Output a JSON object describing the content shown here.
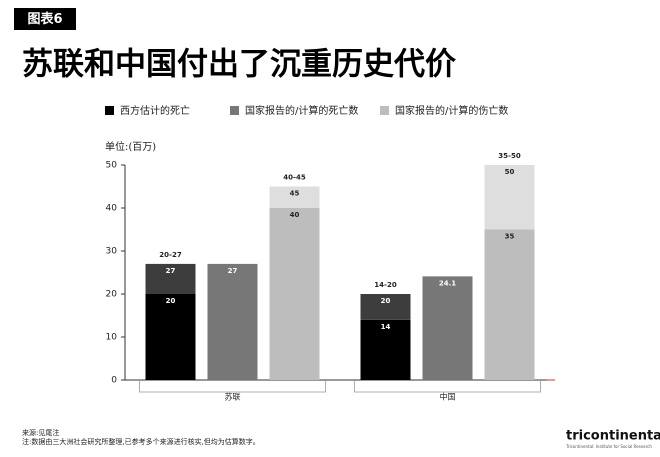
{
  "header": {
    "tag": "图表6"
  },
  "chart_data": {
    "type": "bar",
    "title": "苏联和中国付出了沉重历史代价",
    "ylabel": "单位:(百万)",
    "categories": [
      "苏联",
      "中国"
    ],
    "series": [
      {
        "name": "西方估计的死亡",
        "color": "#000000",
        "high_color": "#3d3d3d",
        "values": [
          20,
          14
        ],
        "values_high": [
          27,
          20
        ],
        "range_labels": [
          "20-27",
          "14-20"
        ]
      },
      {
        "name": "国家报告的/计算的死亡数",
        "color": "#777777",
        "values": [
          27,
          24.1
        ]
      },
      {
        "name": "国家报告的/计算的伤亡数",
        "color": "#bdbdbd",
        "high_color": "#dedede",
        "values": [
          40,
          35
        ],
        "values_high": [
          45,
          50
        ],
        "range_labels": [
          "40-45",
          "35-50"
        ]
      }
    ],
    "ylim": [
      0,
      50
    ],
    "yticks": [
      0,
      10,
      20,
      30,
      40,
      50
    ]
  },
  "footer": {
    "source": "来源:见尾注",
    "note": "注:数据由三大洲社会研究所整理,已参考多个来源进行核实,但均为估算数字。",
    "logo": "tricontinental",
    "logo_sub": "Tricontinental: Institute for Social Research"
  }
}
